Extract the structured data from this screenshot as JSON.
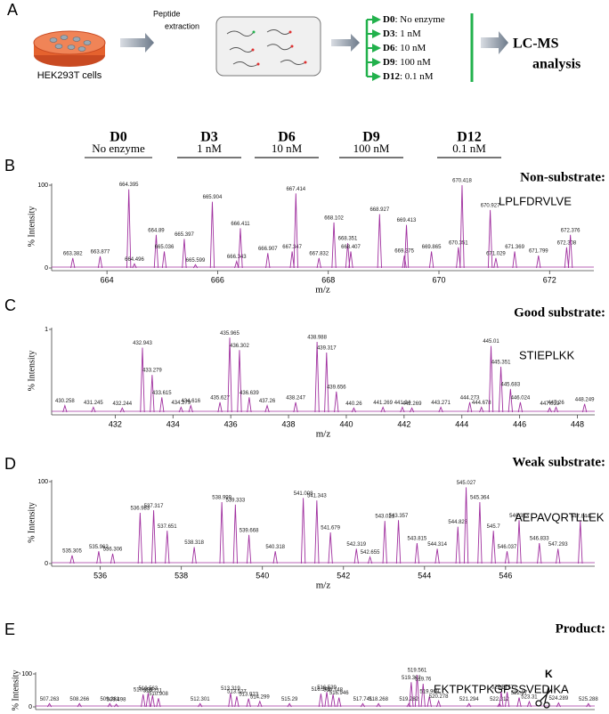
{
  "schematic": {
    "panel": "A",
    "cells": "HEK293T cells",
    "step": [
      "Peptide",
      "extraction"
    ],
    "conditions": [
      {
        "id": "D0",
        "label": ": No enzyme"
      },
      {
        "id": "D3",
        "label": ": 1 nM"
      },
      {
        "id": "D6",
        "label": ": 10 nM"
      },
      {
        "id": "D9",
        "label": ": 100 nM"
      },
      {
        "id": "D12",
        "label": ": 0.1 nM"
      }
    ],
    "analysis": [
      "LC-MS",
      "analysis"
    ]
  },
  "header": [
    {
      "id": "D0",
      "label": "No enzyme"
    },
    {
      "id": "D3",
      "label": "1 nM"
    },
    {
      "id": "D6",
      "label": "10 nM"
    },
    {
      "id": "D9",
      "label": "100 nM"
    },
    {
      "id": "D12",
      "label": "0.1 nM"
    }
  ],
  "chart_data": [
    {
      "type": "spectrum",
      "panel": "B",
      "title": "Non-substrate:",
      "peptide": "LPLFDRVLVE",
      "y_label": "% Intensity",
      "x_label": "m/z",
      "color": "#a0309f",
      "xlim": [
        663,
        672.8
      ],
      "xticks": [
        664,
        666,
        668,
        670,
        672
      ],
      "ylim": [
        0,
        100
      ],
      "yticks": [
        0,
        100
      ],
      "x": [
        663.382,
        663.877,
        664.395,
        664.496,
        664.89,
        665.036,
        665.397,
        665.599,
        665.904,
        666.343,
        666.411,
        666.907,
        667.347,
        667.414,
        667.832,
        668.102,
        668.351,
        668.407,
        668.927,
        669.375,
        669.413,
        669.865,
        670.351,
        670.418,
        670.927,
        671.029,
        671.369,
        671.799,
        672.308,
        672.376
      ],
      "values": [
        12,
        14,
        95,
        5,
        40,
        20,
        35,
        4,
        80,
        8,
        48,
        18,
        20,
        90,
        12,
        55,
        30,
        20,
        65,
        15,
        52,
        20,
        25,
        100,
        70,
        12,
        20,
        15,
        25,
        40
      ]
    },
    {
      "type": "spectrum",
      "panel": "C",
      "title": "Good substrate:",
      "peptide": "STIEPLKK",
      "y_label": "% Intensity",
      "x_label": "m/z",
      "color": "#a0309f",
      "xlim": [
        429.8,
        448.6
      ],
      "xticks": [
        432,
        434,
        436,
        438,
        440,
        442,
        444,
        446,
        448
      ],
      "ylim": [
        0,
        100
      ],
      "yticks": [
        {
          "value": 100,
          "label": "1"
        }
      ],
      "x": [
        430.258,
        431.245,
        432.244,
        432.943,
        433.279,
        433.615,
        434.279,
        434.616,
        435.627,
        435.965,
        436.302,
        436.639,
        437.26,
        438.247,
        438.988,
        439.317,
        439.656,
        440.26,
        441.269,
        441.94,
        442.269,
        443.271,
        444.273,
        444.678,
        445.01,
        445.351,
        445.683,
        446.024,
        447.039,
        447.26,
        448.249
      ],
      "values": [
        8,
        6,
        5,
        78,
        45,
        18,
        6,
        8,
        12,
        90,
        75,
        18,
        8,
        12,
        85,
        72,
        25,
        5,
        6,
        6,
        5,
        6,
        12,
        6,
        80,
        55,
        28,
        12,
        5,
        6,
        10
      ]
    },
    {
      "type": "spectrum",
      "panel": "D",
      "title": "Weak substrate:",
      "peptide": "AEPAVQRTLLEK",
      "y_label": "% Intensity",
      "x_label": "m/z",
      "color": "#a0309f",
      "xlim": [
        534.8,
        548.2
      ],
      "xticks": [
        536,
        538,
        540,
        542,
        544,
        546
      ],
      "ylim": [
        0,
        100
      ],
      "yticks": [
        0,
        100
      ],
      "x": [
        535.305,
        535.962,
        536.306,
        536.983,
        537.317,
        537.651,
        538.318,
        538.999,
        539.333,
        539.668,
        540.318,
        541.008,
        541.343,
        541.679,
        542.319,
        542.655,
        543.021,
        543.357,
        543.815,
        544.314,
        544.823,
        545.027,
        545.364,
        545.7,
        546.037,
        546.333,
        546.833,
        547.293,
        547.844
      ],
      "values": [
        10,
        15,
        12,
        62,
        65,
        40,
        20,
        75,
        72,
        35,
        15,
        80,
        77,
        38,
        18,
        8,
        52,
        53,
        25,
        18,
        45,
        93,
        75,
        40,
        15,
        53,
        25,
        18,
        52
      ]
    },
    {
      "type": "spectrum",
      "panel": "E",
      "title": "Product:",
      "peptide": "EKTPKTPKGPSSVEDIKA",
      "cleaved": "K",
      "y_label": "% Intensity",
      "color": "#a0309f",
      "xlim": [
        506.8,
        525.5
      ],
      "ylim": [
        0,
        100
      ],
      "yticks": [
        0,
        100
      ],
      "x": [
        507.263,
        508.266,
        509.281,
        509.498,
        510.396,
        510.563,
        510.711,
        510.908,
        512.301,
        513.319,
        513.527,
        513.923,
        514.299,
        515.29,
        516.341,
        516.539,
        516.748,
        516.946,
        517.741,
        518.268,
        519.282,
        519.362,
        519.561,
        519.76,
        519.969,
        520.278,
        521.294,
        522.312,
        522.371,
        522.571,
        522.97,
        523.31,
        524.289,
        525.288
      ],
      "values": [
        10,
        10,
        10,
        8,
        38,
        42,
        35,
        26,
        10,
        42,
        32,
        25,
        17,
        10,
        40,
        45,
        38,
        28,
        10,
        10,
        10,
        75,
        97,
        70,
        32,
        18,
        10,
        10,
        46,
        45,
        28,
        16,
        12,
        10
      ]
    }
  ]
}
